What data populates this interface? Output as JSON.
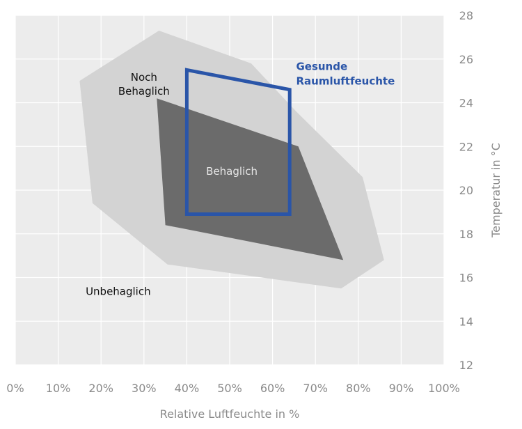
{
  "chart_data": {
    "type": "area",
    "xlabel": "Relative Luftfeuchte in %",
    "ylabel": "Temperatur in °C",
    "xlim": [
      0,
      100
    ],
    "ylim": [
      12,
      28
    ],
    "x_ticks": [
      {
        "value": 0,
        "label": "0%"
      },
      {
        "value": 10,
        "label": "10%"
      },
      {
        "value": 20,
        "label": "20%"
      },
      {
        "value": 30,
        "label": "30%"
      },
      {
        "value": 40,
        "label": "40%"
      },
      {
        "value": 50,
        "label": "50%"
      },
      {
        "value": 60,
        "label": "60%"
      },
      {
        "value": 70,
        "label": "70%"
      },
      {
        "value": 80,
        "label": "80%"
      },
      {
        "value": 90,
        "label": "90%"
      },
      {
        "value": 100,
        "label": "100%"
      }
    ],
    "y_ticks": [
      {
        "value": 12,
        "label": "12"
      },
      {
        "value": 14,
        "label": "14"
      },
      {
        "value": 16,
        "label": "16"
      },
      {
        "value": 18,
        "label": "18"
      },
      {
        "value": 20,
        "label": "20"
      },
      {
        "value": 22,
        "label": "22"
      },
      {
        "value": 24,
        "label": "24"
      },
      {
        "value": 26,
        "label": "26"
      },
      {
        "value": 28,
        "label": "28"
      }
    ],
    "grid": true,
    "background_color": "#ececec",
    "regions": [
      {
        "name": "Noch Behaglich",
        "label_lines": [
          "Noch",
          "Behaglich"
        ],
        "label_position": [
          30,
          25
        ],
        "label_color": "#111111",
        "fill": "#d3d3d3",
        "points": [
          [
            15,
            25
          ],
          [
            33.5,
            27.3
          ],
          [
            55,
            25.8
          ],
          [
            65.5,
            23.6
          ],
          [
            81,
            20.6
          ],
          [
            86,
            16.8
          ],
          [
            76,
            15.5
          ],
          [
            35.5,
            16.6
          ],
          [
            18,
            19.4
          ]
        ]
      },
      {
        "name": "Behaglich",
        "label_lines": [
          "Behaglich"
        ],
        "label_position": [
          50.5,
          20.7
        ],
        "label_color": "#e6e6e6",
        "fill": "#6b6b6b",
        "points": [
          [
            33,
            24.2
          ],
          [
            66,
            22
          ],
          [
            76.5,
            16.8
          ],
          [
            35,
            18.4
          ]
        ]
      }
    ],
    "outline": {
      "name": "Gesunde Raumluftfeuchte",
      "label_lines": [
        "Gesunde",
        "Raumluftfeuchte"
      ],
      "label_position": [
        65.5,
        25.5
      ],
      "color": "#2a55a8",
      "points": [
        [
          40,
          25.5
        ],
        [
          64,
          24.6
        ],
        [
          64,
          18.9
        ],
        [
          40,
          18.9
        ]
      ]
    },
    "annotations": [
      {
        "text": "Unbehaglich",
        "position": [
          24,
          15.2
        ],
        "color": "#111111"
      }
    ]
  }
}
